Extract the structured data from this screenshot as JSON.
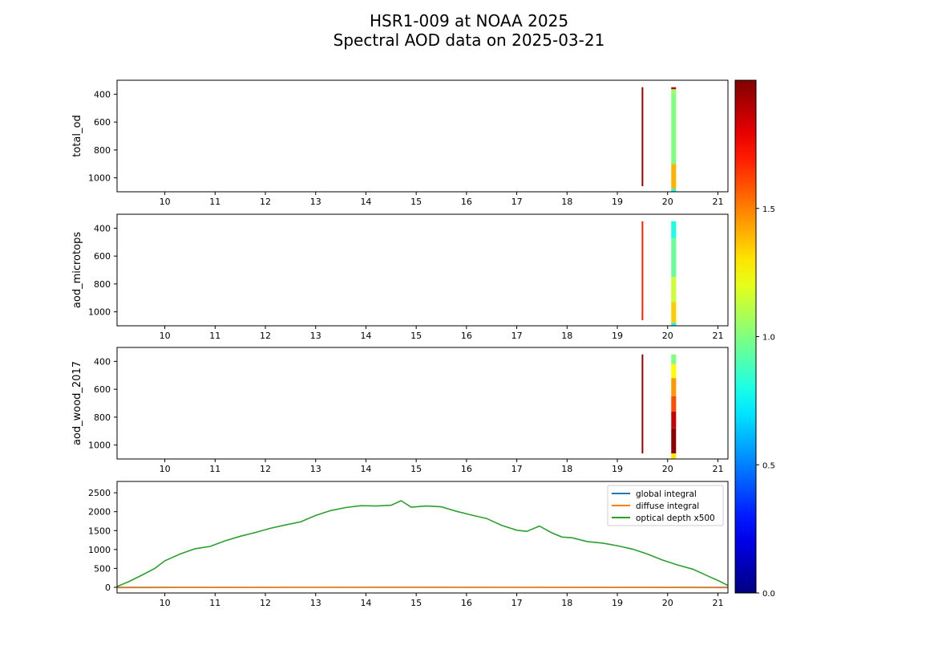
{
  "title": "HSR1-009 at NOAA 2025",
  "subtitle": "Spectral AOD data on 2025-03-21",
  "chart_data": [
    {
      "type": "heatmap",
      "ylabel": "total_od",
      "xlim": [
        9.05,
        21.2
      ],
      "ylim": [
        1100,
        300
      ],
      "x_ticks": [
        10,
        11,
        12,
        13,
        14,
        15,
        16,
        17,
        18,
        19,
        20,
        21
      ],
      "y_ticks": [
        400,
        600,
        800,
        1000
      ],
      "strips": [
        {
          "x": 19.5,
          "color_bands": [
            [
              350,
              1060,
              1.95
            ]
          ]
        },
        {
          "x": 20.12,
          "color_bands": [
            [
              350,
              365,
              1.9
            ],
            [
              365,
              400,
              1.05
            ],
            [
              400,
              900,
              1.0
            ],
            [
              900,
              1080,
              1.4
            ],
            [
              1080,
              1100,
              0.8
            ]
          ]
        }
      ]
    },
    {
      "type": "heatmap",
      "ylabel": "aod_microtops",
      "xlim": [
        9.05,
        21.2
      ],
      "ylim": [
        1100,
        300
      ],
      "x_ticks": [
        10,
        11,
        12,
        13,
        14,
        15,
        16,
        17,
        18,
        19,
        20,
        21
      ],
      "y_ticks": [
        400,
        600,
        800,
        1000
      ],
      "strips": [
        {
          "x": 19.5,
          "color_bands": [
            [
              350,
              1060,
              1.7
            ]
          ]
        },
        {
          "x": 20.12,
          "color_bands": [
            [
              350,
              470,
              0.8
            ],
            [
              470,
              750,
              0.95
            ],
            [
              750,
              930,
              1.15
            ],
            [
              930,
              1080,
              1.35
            ],
            [
              1080,
              1100,
              0.75
            ]
          ]
        }
      ]
    },
    {
      "type": "heatmap",
      "ylabel": "aod_wood_2017",
      "xlim": [
        9.05,
        21.2
      ],
      "ylim": [
        1100,
        300
      ],
      "x_ticks": [
        10,
        11,
        12,
        13,
        14,
        15,
        16,
        17,
        18,
        19,
        20,
        21
      ],
      "y_ticks": [
        400,
        600,
        800,
        1000
      ],
      "strips": [
        {
          "x": 19.5,
          "color_bands": [
            [
              350,
              1060,
              1.95
            ]
          ]
        },
        {
          "x": 20.12,
          "color_bands": [
            [
              350,
              420,
              1.0
            ],
            [
              420,
              520,
              1.25
            ],
            [
              520,
              650,
              1.45
            ],
            [
              650,
              760,
              1.6
            ],
            [
              760,
              880,
              1.85
            ],
            [
              880,
              1060,
              1.97
            ],
            [
              1060,
              1100,
              1.3
            ]
          ]
        }
      ]
    },
    {
      "type": "line",
      "xlim": [
        9.05,
        21.2
      ],
      "ylim": [
        -150,
        2800
      ],
      "x_ticks": [
        10,
        11,
        12,
        13,
        14,
        15,
        16,
        17,
        18,
        19,
        20,
        21
      ],
      "y_ticks": [
        0,
        500,
        1000,
        1500,
        2000,
        2500
      ],
      "legend_position": "upper-right",
      "series": [
        {
          "name": "global integral",
          "color": "#1f77b4",
          "x": [
            9.05,
            21.2
          ],
          "values": [
            0,
            0
          ]
        },
        {
          "name": "diffuse integral",
          "color": "#ff7f0e",
          "x": [
            9.05,
            12,
            15,
            18,
            21.2
          ],
          "values": [
            -10,
            0,
            5,
            0,
            -10
          ]
        },
        {
          "name": "optical depth x500",
          "color": "#2ca02c",
          "x": [
            9.05,
            9.3,
            9.6,
            9.8,
            10.0,
            10.3,
            10.6,
            10.9,
            11.2,
            11.5,
            11.8,
            12.1,
            12.4,
            12.7,
            13.0,
            13.3,
            13.6,
            13.9,
            14.2,
            14.5,
            14.7,
            14.9,
            15.2,
            15.5,
            15.8,
            16.1,
            16.4,
            16.7,
            17.0,
            17.2,
            17.45,
            17.7,
            17.9,
            18.1,
            18.4,
            18.7,
            19.0,
            19.3,
            19.6,
            19.9,
            20.2,
            20.5,
            20.8,
            21.05,
            21.2
          ],
          "values": [
            20,
            160,
            360,
            500,
            700,
            880,
            1020,
            1080,
            1230,
            1350,
            1450,
            1560,
            1650,
            1730,
            1900,
            2030,
            2110,
            2160,
            2150,
            2170,
            2290,
            2120,
            2150,
            2130,
            2010,
            1910,
            1820,
            1640,
            1510,
            1480,
            1620,
            1440,
            1330,
            1310,
            1210,
            1170,
            1100,
            1010,
            880,
            720,
            590,
            480,
            300,
            150,
            50
          ]
        }
      ]
    }
  ],
  "colorbar": {
    "colormap": "jet",
    "range": [
      0,
      2
    ],
    "ticks": [
      0.0,
      0.5,
      1.0,
      1.5
    ],
    "tick_labels": [
      "0.0",
      "0.5",
      "1.0",
      "1.5"
    ]
  }
}
